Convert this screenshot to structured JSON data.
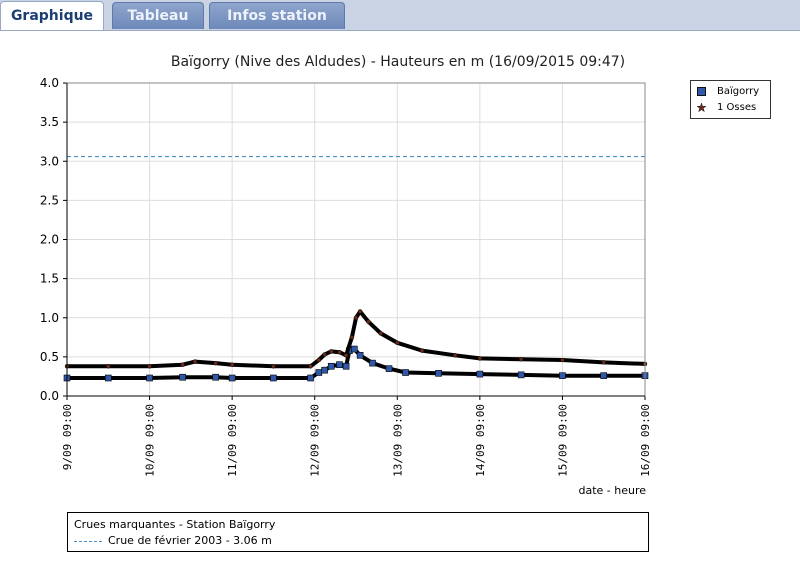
{
  "tabs": [
    {
      "label": "Graphique",
      "active": true
    },
    {
      "label": "Tableau",
      "active": false
    },
    {
      "label": "Infos station",
      "active": false
    }
  ],
  "colors": {
    "reference_line": "#4a90c2",
    "series_baigorry_marker": "#3058a8",
    "series_osses_marker": "#6b2a1a",
    "grid": "#dddddd"
  },
  "chart_data": {
    "type": "line",
    "title": "Baïgorry (Nive des Aldudes) - Hauteurs en m (16/09/2015 09:47)",
    "xlabel": "date - heure",
    "ylabel": "",
    "ylim": [
      0,
      4.0
    ],
    "y_ticks": [
      "0.0",
      "0.5",
      "1.0",
      "1.5",
      "2.0",
      "2.5",
      "3.0",
      "3.5",
      "4.0"
    ],
    "x_ticks": [
      "9/09 09:00",
      "10/09 09:00",
      "11/09 09:00",
      "12/09 09:00",
      "13/09 09:00",
      "14/09 09:00",
      "15/09 09:00",
      "16/09 09:00"
    ],
    "x_unit": "day",
    "grid": true,
    "legend_position": "right",
    "reference_lines": [
      {
        "label": "Crue de février 2003 - 3.06 m",
        "value": 3.06,
        "style": "dashed"
      }
    ],
    "series": [
      {
        "name": "Baïgorry",
        "marker": "square",
        "x": [
          0,
          0.5,
          1,
          1.4,
          1.8,
          2,
          2.5,
          2.95,
          3.05,
          3.12,
          3.2,
          3.3,
          3.38,
          3.42,
          3.48,
          3.55,
          3.7,
          3.9,
          4.1,
          4.5,
          5,
          5.5,
          6,
          6.5,
          7
        ],
        "values": [
          0.23,
          0.23,
          0.23,
          0.24,
          0.24,
          0.23,
          0.23,
          0.23,
          0.3,
          0.33,
          0.38,
          0.4,
          0.38,
          0.58,
          0.6,
          0.52,
          0.42,
          0.35,
          0.3,
          0.29,
          0.28,
          0.27,
          0.26,
          0.26,
          0.26
        ]
      },
      {
        "name": "1 Osses",
        "marker": "star",
        "x": [
          0,
          0.5,
          1,
          1.4,
          1.55,
          1.8,
          2,
          2.5,
          2.95,
          3.05,
          3.12,
          3.2,
          3.3,
          3.38,
          3.45,
          3.5,
          3.55,
          3.65,
          3.8,
          4,
          4.3,
          4.7,
          5,
          5.5,
          6,
          6.5,
          7
        ],
        "values": [
          0.38,
          0.38,
          0.38,
          0.4,
          0.44,
          0.42,
          0.4,
          0.38,
          0.38,
          0.46,
          0.53,
          0.57,
          0.56,
          0.52,
          0.75,
          1.0,
          1.08,
          0.95,
          0.8,
          0.68,
          0.58,
          0.52,
          0.48,
          0.47,
          0.46,
          0.43,
          0.41
        ]
      }
    ]
  },
  "crues_box": {
    "title": "Crues marquantes - Station Baïgorry",
    "item": "Crue de février 2003 - 3.06 m"
  }
}
